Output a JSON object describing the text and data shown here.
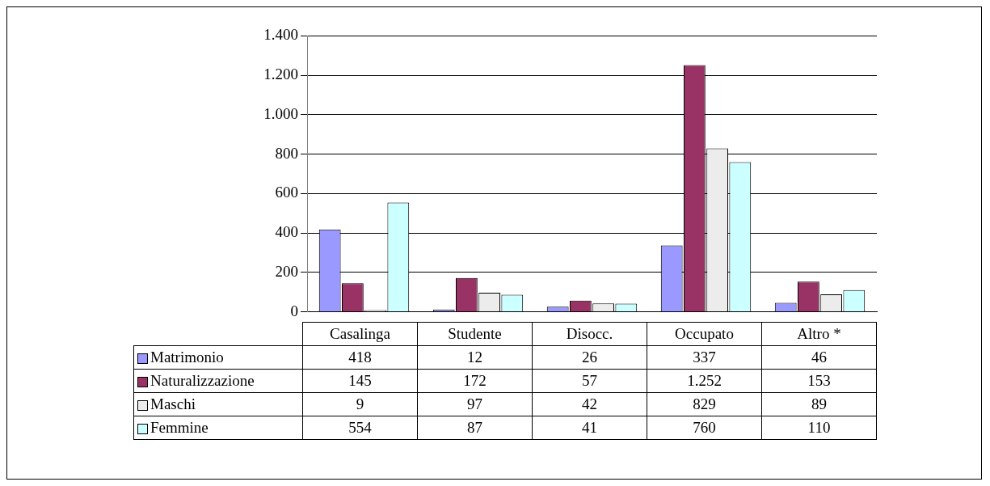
{
  "chart_data": {
    "type": "bar",
    "categories": [
      "Casalinga",
      "Studente",
      "Disocc.",
      "Occupato",
      "Altro *"
    ],
    "series": [
      {
        "name": "Matrimonio",
        "color": "#9999ff",
        "values": [
          418,
          12,
          26,
          337,
          46
        ],
        "value_labels": [
          "418",
          "12",
          "26",
          "337",
          "46"
        ]
      },
      {
        "name": "Naturalizzazione",
        "color": "#993366",
        "values": [
          145,
          172,
          57,
          1252,
          153
        ],
        "value_labels": [
          "145",
          "172",
          "57",
          "1.252",
          "153"
        ]
      },
      {
        "name": "Maschi",
        "color": "#ececec",
        "values": [
          9,
          97,
          42,
          829,
          89
        ],
        "value_labels": [
          "9",
          "97",
          "42",
          "829",
          "89"
        ]
      },
      {
        "name": "Femmine",
        "color": "#ccffff",
        "values": [
          554,
          87,
          41,
          760,
          110
        ],
        "value_labels": [
          "554",
          "87",
          "41",
          "760",
          "110"
        ]
      }
    ],
    "ylim": [
      0,
      1400
    ],
    "yticks": [
      0,
      200,
      400,
      600,
      800,
      {
        "value": 1000,
        "label": "1.000"
      },
      {
        "value": 1200,
        "label": "1.200"
      },
      {
        "value": 1400,
        "label": "1.400"
      }
    ],
    "grid": "y",
    "legend": "bottom"
  }
}
